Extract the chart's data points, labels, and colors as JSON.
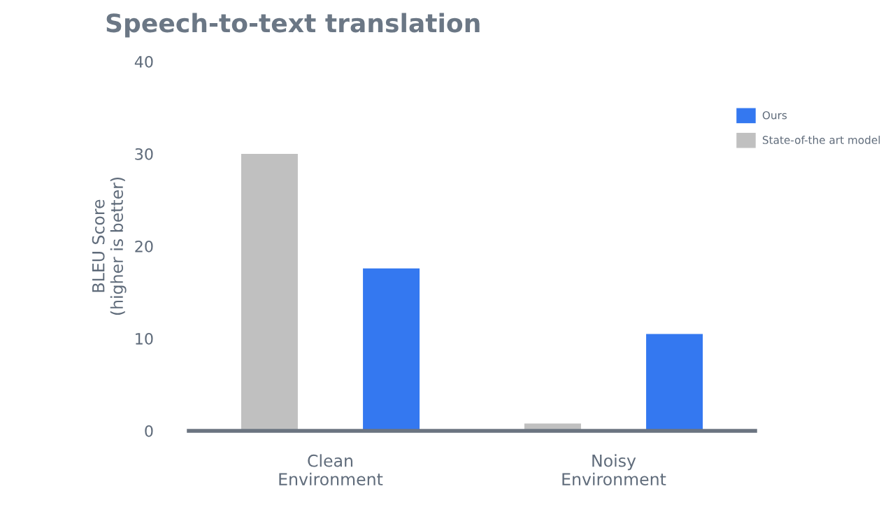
{
  "chart_data": {
    "type": "bar",
    "title": "Speech-to-text translation",
    "ylabel": "BLEU Score\n(higher is better)",
    "categories": [
      "Clean\nEnvironment",
      "Noisy\nEnvironment"
    ],
    "series": [
      {
        "name": "State-of-the art model",
        "color": "#c0c0c0",
        "values": [
          30,
          0.8
        ]
      },
      {
        "name": "Ours",
        "color": "#3478f0",
        "values": [
          17.6,
          10.5
        ]
      }
    ],
    "ylim": [
      0,
      40
    ],
    "yticks": [
      0,
      10,
      20,
      30,
      40
    ],
    "grid": false,
    "legend": "top right"
  }
}
